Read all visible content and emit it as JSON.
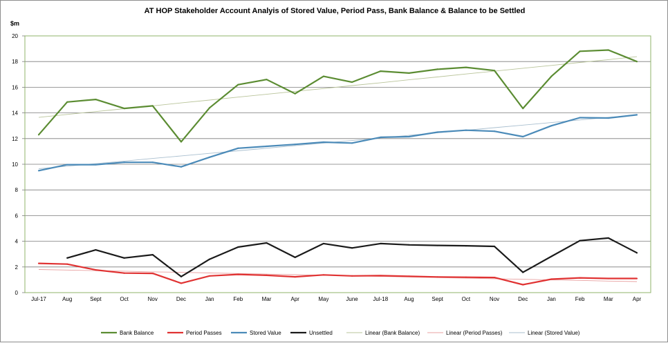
{
  "chart_data": {
    "type": "line",
    "title": "AT HOP Stakeholder Account Analyis of Stored Value, Period Pass, Bank Balance & Balance to be Settled",
    "ylabel": "$m",
    "ylim": [
      0,
      20
    ],
    "ytick_step": 2,
    "grid": true,
    "legend_position": "bottom",
    "categories": [
      "Jul-17",
      "Aug",
      "Sept",
      "Oct",
      "Nov",
      "Dec",
      "Jan",
      "Feb",
      "Mar",
      "Apr",
      "May",
      "June",
      "Jul-18",
      "Aug",
      "Sept",
      "Oct",
      "Nov",
      "Dec",
      "Jan",
      "Feb",
      "Mar",
      "Apr"
    ],
    "series": [
      {
        "name": "Bank Balance",
        "color": "#5b8c32",
        "values": [
          12.3,
          14.85,
          15.05,
          14.35,
          14.55,
          11.75,
          14.4,
          16.2,
          16.6,
          15.5,
          16.85,
          16.4,
          17.25,
          17.1,
          17.4,
          17.55,
          17.3,
          14.35,
          16.85,
          18.8,
          18.9,
          18.0
        ]
      },
      {
        "name": "Period Passes",
        "color": "#e03232",
        "values": [
          2.28,
          2.22,
          1.77,
          1.52,
          1.5,
          0.73,
          1.3,
          1.42,
          1.35,
          1.23,
          1.38,
          1.3,
          1.32,
          1.27,
          1.22,
          1.2,
          1.18,
          0.62,
          1.05,
          1.15,
          1.1,
          1.1
        ]
      },
      {
        "name": "Stored Value",
        "color": "#4a8ab8",
        "values": [
          9.5,
          9.97,
          9.97,
          10.15,
          10.15,
          9.8,
          10.55,
          11.25,
          11.4,
          11.55,
          11.72,
          11.65,
          12.1,
          12.15,
          12.5,
          12.65,
          12.57,
          12.15,
          13.0,
          13.63,
          13.6,
          13.85
        ]
      },
      {
        "name": "Unsettled",
        "color": "#1a1a1a",
        "values": [
          null,
          2.7,
          3.33,
          2.7,
          2.95,
          1.25,
          2.6,
          3.55,
          3.87,
          2.75,
          3.82,
          3.48,
          3.82,
          3.72,
          3.68,
          3.65,
          3.6,
          1.58,
          2.82,
          4.05,
          4.25,
          3.1
        ]
      },
      {
        "name": "Linear (Bank Balance)",
        "color": "#b9c49a",
        "trend": true,
        "values": [
          13.65,
          13.88,
          14.1,
          14.33,
          14.55,
          14.78,
          15.0,
          15.23,
          15.45,
          15.68,
          15.9,
          16.13,
          16.35,
          16.58,
          16.8,
          17.03,
          17.25,
          17.48,
          17.7,
          17.93,
          18.15,
          18.38
        ]
      },
      {
        "name": "Linear (Period Passes)",
        "color": "#e8a0a0",
        "trend": true,
        "values": [
          1.8,
          1.76,
          1.71,
          1.67,
          1.62,
          1.58,
          1.53,
          1.49,
          1.44,
          1.4,
          1.35,
          1.31,
          1.26,
          1.22,
          1.17,
          1.13,
          1.08,
          1.04,
          0.99,
          0.95,
          0.9,
          0.86
        ]
      },
      {
        "name": "Linear (Stored Value)",
        "color": "#a9bfcf",
        "trend": true,
        "values": [
          9.65,
          9.85,
          10.05,
          10.25,
          10.45,
          10.65,
          10.85,
          11.05,
          11.25,
          11.45,
          11.65,
          11.85,
          12.05,
          12.25,
          12.45,
          12.65,
          12.85,
          13.05,
          13.25,
          13.45,
          13.65,
          13.85
        ]
      }
    ]
  }
}
